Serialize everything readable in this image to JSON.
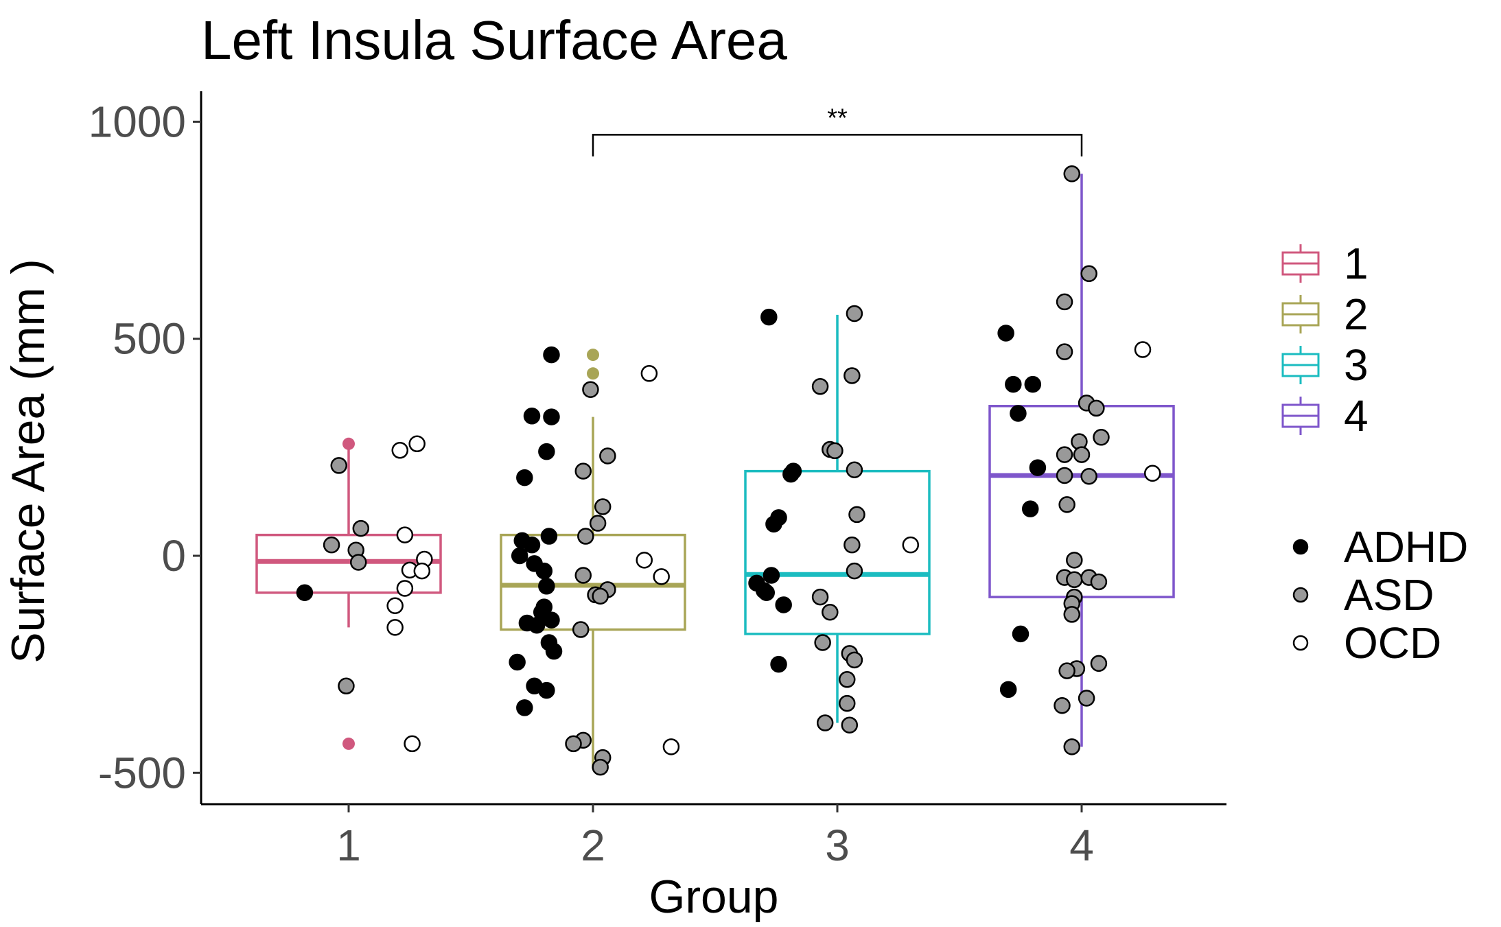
{
  "chart_data": {
    "type": "boxplot",
    "title": "Left Insula Surface Area",
    "xlabel": "Group",
    "ylabel": "Surface Area (mm )",
    "categories": [
      "1",
      "2",
      "3",
      "4"
    ],
    "ylim": [
      -555,
      1075
    ],
    "yticks": [
      -500,
      0,
      500,
      1000
    ],
    "yticklabels": [
      "-500",
      "0",
      "500",
      "1000"
    ],
    "grid": false,
    "legend_position": "right",
    "legend_fill": {
      "entries": [
        {
          "label": "1",
          "color": "#d0587e"
        },
        {
          "label": "2",
          "color": "#a8a556"
        },
        {
          "label": "3",
          "color": "#1bbcc0"
        },
        {
          "label": "4",
          "color": "#7e56cb"
        }
      ]
    },
    "legend_shape": {
      "entries": [
        {
          "label": "ADHD",
          "color": "#000000"
        },
        {
          "label": "ASD",
          "color": "#999999"
        },
        {
          "label": "OCD",
          "color": "#ffffff"
        }
      ]
    },
    "boxes": [
      {
        "group": "1",
        "color": "#d0587e",
        "q1": -85,
        "median": -13,
        "q3": 48,
        "whisker_low": -165,
        "whisker_high": 258,
        "outliers": [
          258,
          -433
        ]
      },
      {
        "group": "2",
        "color": "#a8a556",
        "q1": -170,
        "median": -68,
        "q3": 48,
        "whisker_low": -490,
        "whisker_high": 320,
        "outliers": [
          463,
          420
        ]
      },
      {
        "group": "3",
        "color": "#1bbcc0",
        "q1": -180,
        "median": -43,
        "q3": 195,
        "whisker_low": -385,
        "whisker_high": 555,
        "outliers": []
      },
      {
        "group": "4",
        "color": "#7e56cb",
        "q1": -95,
        "median": 185,
        "q3": 345,
        "whisker_low": -440,
        "whisker_high": 880,
        "outliers": []
      }
    ],
    "points": [
      {
        "x": 0.82,
        "y": -85,
        "dx": "ADHD"
      },
      {
        "x": 0.96,
        "y": 208,
        "dx": "ASD"
      },
      {
        "x": 0.93,
        "y": 25,
        "dx": "ASD"
      },
      {
        "x": 1.05,
        "y": 63,
        "dx": "ASD"
      },
      {
        "x": 1.03,
        "y": 13,
        "dx": "ASD"
      },
      {
        "x": 1.04,
        "y": -15,
        "dx": "ASD"
      },
      {
        "x": 0.99,
        "y": -300,
        "dx": "ASD"
      },
      {
        "x": 1.21,
        "y": 243,
        "dx": "OCD"
      },
      {
        "x": 1.28,
        "y": 258,
        "dx": "OCD"
      },
      {
        "x": 1.23,
        "y": 48,
        "dx": "OCD"
      },
      {
        "x": 1.31,
        "y": -8,
        "dx": "OCD"
      },
      {
        "x": 1.25,
        "y": -33,
        "dx": "OCD"
      },
      {
        "x": 1.3,
        "y": -35,
        "dx": "OCD"
      },
      {
        "x": 1.23,
        "y": -75,
        "dx": "OCD"
      },
      {
        "x": 1.19,
        "y": -115,
        "dx": "OCD"
      },
      {
        "x": 1.19,
        "y": -165,
        "dx": "OCD"
      },
      {
        "x": 1.26,
        "y": -433,
        "dx": "OCD"
      },
      {
        "x": 1.83,
        "y": 463,
        "dx": "ADHD"
      },
      {
        "x": 1.75,
        "y": 322,
        "dx": "ADHD"
      },
      {
        "x": 1.83,
        "y": 320,
        "dx": "ADHD"
      },
      {
        "x": 1.81,
        "y": 240,
        "dx": "ADHD"
      },
      {
        "x": 1.72,
        "y": 180,
        "dx": "ADHD"
      },
      {
        "x": 1.71,
        "y": 35,
        "dx": "ADHD"
      },
      {
        "x": 1.82,
        "y": 45,
        "dx": "ADHD"
      },
      {
        "x": 1.75,
        "y": 25,
        "dx": "ADHD"
      },
      {
        "x": 1.7,
        "y": 0,
        "dx": "ADHD"
      },
      {
        "x": 1.76,
        "y": -18,
        "dx": "ADHD"
      },
      {
        "x": 1.8,
        "y": -35,
        "dx": "ADHD"
      },
      {
        "x": 1.81,
        "y": -70,
        "dx": "ADHD"
      },
      {
        "x": 1.8,
        "y": -118,
        "dx": "ADHD"
      },
      {
        "x": 1.79,
        "y": -130,
        "dx": "ADHD"
      },
      {
        "x": 1.73,
        "y": -155,
        "dx": "ADHD"
      },
      {
        "x": 1.77,
        "y": -160,
        "dx": "ADHD"
      },
      {
        "x": 1.83,
        "y": -148,
        "dx": "ADHD"
      },
      {
        "x": 1.82,
        "y": -200,
        "dx": "ADHD"
      },
      {
        "x": 1.84,
        "y": -220,
        "dx": "ADHD"
      },
      {
        "x": 1.69,
        "y": -245,
        "dx": "ADHD"
      },
      {
        "x": 1.76,
        "y": -300,
        "dx": "ADHD"
      },
      {
        "x": 1.81,
        "y": -310,
        "dx": "ADHD"
      },
      {
        "x": 1.72,
        "y": -350,
        "dx": "ADHD"
      },
      {
        "x": 1.99,
        "y": 383,
        "dx": "ASD"
      },
      {
        "x": 2.06,
        "y": 230,
        "dx": "ASD"
      },
      {
        "x": 1.96,
        "y": 195,
        "dx": "ASD"
      },
      {
        "x": 2.04,
        "y": 113,
        "dx": "ASD"
      },
      {
        "x": 2.02,
        "y": 75,
        "dx": "ASD"
      },
      {
        "x": 1.97,
        "y": 45,
        "dx": "ASD"
      },
      {
        "x": 1.96,
        "y": -45,
        "dx": "ASD"
      },
      {
        "x": 2.06,
        "y": -78,
        "dx": "ASD"
      },
      {
        "x": 2.01,
        "y": -90,
        "dx": "ASD"
      },
      {
        "x": 2.03,
        "y": -93,
        "dx": "ASD"
      },
      {
        "x": 1.95,
        "y": -170,
        "dx": "ASD"
      },
      {
        "x": 1.96,
        "y": -425,
        "dx": "ASD"
      },
      {
        "x": 1.92,
        "y": -433,
        "dx": "ASD"
      },
      {
        "x": 2.04,
        "y": -465,
        "dx": "ASD"
      },
      {
        "x": 2.03,
        "y": -487,
        "dx": "ASD"
      },
      {
        "x": 2.23,
        "y": 420,
        "dx": "OCD"
      },
      {
        "x": 2.21,
        "y": -10,
        "dx": "OCD"
      },
      {
        "x": 2.28,
        "y": -48,
        "dx": "OCD"
      },
      {
        "x": 2.32,
        "y": -440,
        "dx": "OCD"
      },
      {
        "x": 2.72,
        "y": 550,
        "dx": "ADHD"
      },
      {
        "x": 2.82,
        "y": 195,
        "dx": "ADHD"
      },
      {
        "x": 2.81,
        "y": 188,
        "dx": "ADHD"
      },
      {
        "x": 2.76,
        "y": 88,
        "dx": "ADHD"
      },
      {
        "x": 2.74,
        "y": 73,
        "dx": "ADHD"
      },
      {
        "x": 2.73,
        "y": -45,
        "dx": "ADHD"
      },
      {
        "x": 2.67,
        "y": -63,
        "dx": "ADHD"
      },
      {
        "x": 2.7,
        "y": -80,
        "dx": "ADHD"
      },
      {
        "x": 2.71,
        "y": -85,
        "dx": "ADHD"
      },
      {
        "x": 2.78,
        "y": -113,
        "dx": "ADHD"
      },
      {
        "x": 2.76,
        "y": -250,
        "dx": "ADHD"
      },
      {
        "x": 3.07,
        "y": 558,
        "dx": "ASD"
      },
      {
        "x": 3.06,
        "y": 415,
        "dx": "ASD"
      },
      {
        "x": 2.93,
        "y": 390,
        "dx": "ASD"
      },
      {
        "x": 2.97,
        "y": 245,
        "dx": "ASD"
      },
      {
        "x": 2.99,
        "y": 242,
        "dx": "ASD"
      },
      {
        "x": 3.07,
        "y": 198,
        "dx": "ASD"
      },
      {
        "x": 3.08,
        "y": 95,
        "dx": "ASD"
      },
      {
        "x": 3.06,
        "y": 25,
        "dx": "ASD"
      },
      {
        "x": 3.07,
        "y": -35,
        "dx": "ASD"
      },
      {
        "x": 2.93,
        "y": -95,
        "dx": "ASD"
      },
      {
        "x": 2.97,
        "y": -130,
        "dx": "ASD"
      },
      {
        "x": 2.94,
        "y": -200,
        "dx": "ASD"
      },
      {
        "x": 3.05,
        "y": -225,
        "dx": "ASD"
      },
      {
        "x": 3.07,
        "y": -240,
        "dx": "ASD"
      },
      {
        "x": 3.04,
        "y": -285,
        "dx": "ASD"
      },
      {
        "x": 3.04,
        "y": -340,
        "dx": "ASD"
      },
      {
        "x": 2.95,
        "y": -385,
        "dx": "ASD"
      },
      {
        "x": 3.05,
        "y": -390,
        "dx": "ASD"
      },
      {
        "x": 3.3,
        "y": 25,
        "dx": "OCD"
      },
      {
        "x": 3.69,
        "y": 513,
        "dx": "ADHD"
      },
      {
        "x": 3.72,
        "y": 395,
        "dx": "ADHD"
      },
      {
        "x": 3.8,
        "y": 395,
        "dx": "ADHD"
      },
      {
        "x": 3.74,
        "y": 328,
        "dx": "ADHD"
      },
      {
        "x": 3.82,
        "y": 203,
        "dx": "ADHD"
      },
      {
        "x": 3.79,
        "y": 108,
        "dx": "ADHD"
      },
      {
        "x": 3.75,
        "y": -180,
        "dx": "ADHD"
      },
      {
        "x": 3.7,
        "y": -308,
        "dx": "ADHD"
      },
      {
        "x": 3.96,
        "y": 880,
        "dx": "ASD"
      },
      {
        "x": 4.03,
        "y": 650,
        "dx": "ASD"
      },
      {
        "x": 3.93,
        "y": 585,
        "dx": "ASD"
      },
      {
        "x": 3.93,
        "y": 470,
        "dx": "ASD"
      },
      {
        "x": 4.02,
        "y": 352,
        "dx": "ASD"
      },
      {
        "x": 4.06,
        "y": 340,
        "dx": "ASD"
      },
      {
        "x": 4.08,
        "y": 273,
        "dx": "ASD"
      },
      {
        "x": 3.99,
        "y": 263,
        "dx": "ASD"
      },
      {
        "x": 3.93,
        "y": 233,
        "dx": "ASD"
      },
      {
        "x": 4.0,
        "y": 233,
        "dx": "ASD"
      },
      {
        "x": 3.93,
        "y": 185,
        "dx": "ASD"
      },
      {
        "x": 4.03,
        "y": 183,
        "dx": "ASD"
      },
      {
        "x": 3.94,
        "y": 118,
        "dx": "ASD"
      },
      {
        "x": 3.97,
        "y": -10,
        "dx": "ASD"
      },
      {
        "x": 3.93,
        "y": -50,
        "dx": "ASD"
      },
      {
        "x": 3.97,
        "y": -55,
        "dx": "ASD"
      },
      {
        "x": 4.03,
        "y": -50,
        "dx": "ASD"
      },
      {
        "x": 4.07,
        "y": -60,
        "dx": "ASD"
      },
      {
        "x": 3.97,
        "y": -95,
        "dx": "ASD"
      },
      {
        "x": 3.96,
        "y": -110,
        "dx": "ASD"
      },
      {
        "x": 3.96,
        "y": -135,
        "dx": "ASD"
      },
      {
        "x": 4.07,
        "y": -248,
        "dx": "ASD"
      },
      {
        "x": 3.98,
        "y": -260,
        "dx": "ASD"
      },
      {
        "x": 3.94,
        "y": -265,
        "dx": "ASD"
      },
      {
        "x": 4.02,
        "y": -328,
        "dx": "ASD"
      },
      {
        "x": 3.92,
        "y": -345,
        "dx": "ASD"
      },
      {
        "x": 3.96,
        "y": -440,
        "dx": "ASD"
      },
      {
        "x": 4.25,
        "y": 475,
        "dx": "OCD"
      },
      {
        "x": 4.29,
        "y": 190,
        "dx": "OCD"
      }
    ],
    "annotations": [
      {
        "text": "**",
        "x1": "2",
        "x2": "4",
        "y": 970,
        "y_drop": 920
      }
    ]
  }
}
